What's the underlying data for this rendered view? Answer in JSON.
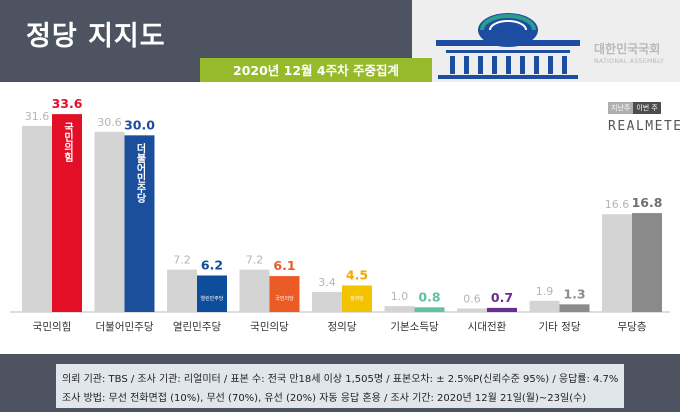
{
  "header": {
    "title": "정당 지지도",
    "subtitle": "2020년 12월 4주차 주중집계",
    "assembly_name": "대한민국국회",
    "assembly_sub": "NATIONAL ASSEMBLY"
  },
  "legend": {
    "prev": "지난주",
    "curr": "이번 주",
    "brand": "REALMETER"
  },
  "chart_data": {
    "type": "bar",
    "categories": [
      "국민의힘",
      "더불어민주당",
      "열린민주당",
      "국민의당",
      "정의당",
      "기본소득당",
      "시대전환",
      "기타 정당",
      "무당층"
    ],
    "series": [
      {
        "name": "지난주",
        "values": [
          31.6,
          30.6,
          7.2,
          7.2,
          3.4,
          1.0,
          0.6,
          1.9,
          16.6
        ]
      },
      {
        "name": "이번 주",
        "values": [
          33.6,
          30.0,
          6.2,
          6.1,
          4.5,
          0.8,
          0.7,
          1.3,
          16.8
        ]
      }
    ],
    "bar_labels": [
      "국민의힘",
      "더불어민주당",
      "열린민주당",
      "국민의당",
      "정의당"
    ],
    "colors": {
      "prev": "#d4d4d4",
      "curr": [
        "#e30f27",
        "#1b4f9c",
        "#0e4d9c",
        "#ea5b26",
        "#f3c300",
        "#5fc1a6",
        "#6a2d91",
        "#8c8c8c",
        "#8a8a8a"
      ],
      "curr_label": [
        "#e30f27",
        "#1b4f9c",
        "#0e4d9c",
        "#ea5b26",
        "#f3a800",
        "#5fc1a6",
        "#6a2d91",
        "#8c8c8c",
        "#707070"
      ]
    },
    "ylim": [
      0,
      36
    ]
  },
  "footer": {
    "line1": "의뢰 기관: TBS / 조사 기관: 리얼미터 / 표본 수: 전국 만18세 이상 1,505명 / 표본오차: ± 2.5%P(신뢰수준 95%) / 응답률: 4.7%",
    "line2": "조사 방법: 무선 전화면접 (10%), 무선 (70%), 유선 (20%) 자동 응답 혼용 / 조사 기간: 2020년 12월 21일(월)~23일(수)"
  }
}
